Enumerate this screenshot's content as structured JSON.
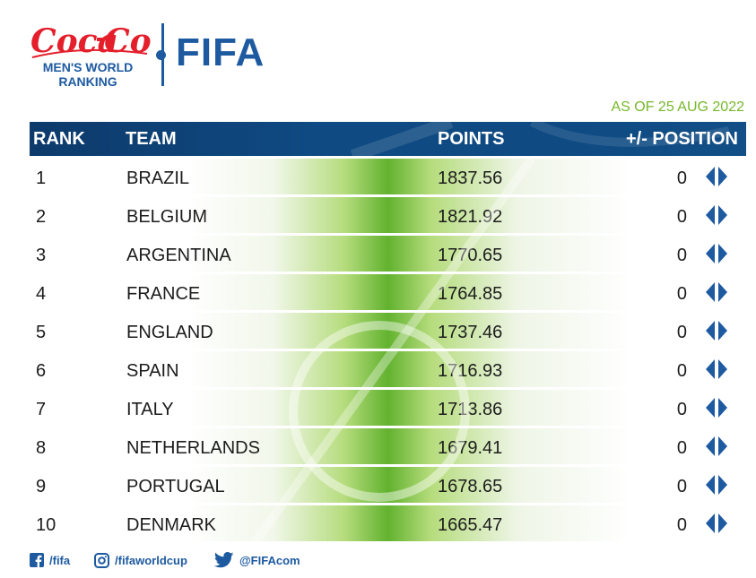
{
  "brand": {
    "sponsor": "Coca-Cola",
    "ranking_line1": "MEN'S WORLD",
    "ranking_line2": "RANKING",
    "org": "FIFA"
  },
  "as_of": "AS OF 25 AUG 2022",
  "columns": {
    "rank": "RANK",
    "team": "TEAM",
    "points": "POINTS",
    "position": "+/- POSITION"
  },
  "rows": [
    {
      "rank": "1",
      "team": "BRAZIL",
      "points": "1837.56",
      "change": "0"
    },
    {
      "rank": "2",
      "team": "BELGIUM",
      "points": "1821.92",
      "change": "0"
    },
    {
      "rank": "3",
      "team": "ARGENTINA",
      "points": "1770.65",
      "change": "0"
    },
    {
      "rank": "4",
      "team": "FRANCE",
      "points": "1764.85",
      "change": "0"
    },
    {
      "rank": "5",
      "team": "ENGLAND",
      "points": "1737.46",
      "change": "0"
    },
    {
      "rank": "6",
      "team": "SPAIN",
      "points": "1716.93",
      "change": "0"
    },
    {
      "rank": "7",
      "team": "ITALY",
      "points": "1713.86",
      "change": "0"
    },
    {
      "rank": "8",
      "team": "NETHERLANDS",
      "points": "1679.41",
      "change": "0"
    },
    {
      "rank": "9",
      "team": "PORTUGAL",
      "points": "1678.65",
      "change": "0"
    },
    {
      "rank": "10",
      "team": "DENMARK",
      "points": "1665.47",
      "change": "0"
    }
  ],
  "footer": {
    "facebook": "/fifa",
    "instagram": "/fifaworldcup",
    "twitter": "@FIFAcom"
  },
  "colors": {
    "brand_blue": "#1e5aa0",
    "header_blue": "#0f4a82",
    "accent_green": "#76b82a",
    "coke_red": "#e41e2b"
  },
  "icons": {
    "change_indicator": "no-change-arrows-icon",
    "facebook": "facebook-icon",
    "instagram": "instagram-icon",
    "twitter": "twitter-icon"
  }
}
